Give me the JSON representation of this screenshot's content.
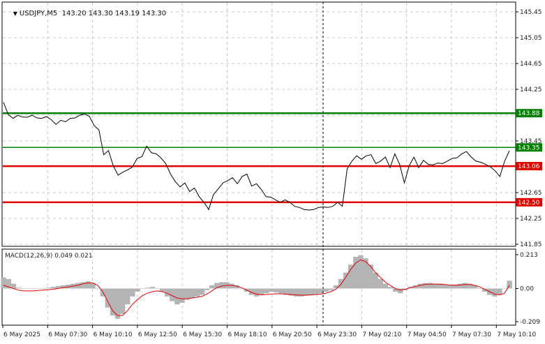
{
  "header": {
    "symbol_label": "USDJPY,M5",
    "ohlc_text": "143.20 143.30 143.19 143.30",
    "menu_icon": "triangle-down-icon"
  },
  "macd_label": "MACD(12,26,9) 0.049 0.021",
  "colors": {
    "price_line": "#000000",
    "support_line": "#e00000",
    "resistance_line": "#008000",
    "macd_hist": "#b4b4b4",
    "macd_signal": "#e00000",
    "grid": "#c8c8c8",
    "label_text": "#ffffff"
  },
  "chart_data": [
    {
      "type": "line",
      "title": "USDJPY,M5",
      "y_ticks": [
        "145.45",
        "145.05",
        "144.65",
        "144.25",
        "143.85",
        "143.45",
        "143.05",
        "142.65",
        "142.25",
        "141.85"
      ],
      "ylim": [
        141.85,
        145.45
      ],
      "x_tick_labels": [
        "6 May 2025",
        "6 May 07:30",
        "6 May 10:10",
        "6 May 12:50",
        "6 May 15:30",
        "6 May 18:10",
        "6 May 20:50",
        "6 May 23:30",
        "7 May 02:10",
        "7 May 04:50",
        "7 May 07:30",
        "7 May 10:10"
      ],
      "levels": [
        {
          "value": 143.88,
          "label": "143.88",
          "kind": "resistance"
        },
        {
          "value": 143.35,
          "label": "143.35",
          "kind": "resistance"
        },
        {
          "value": 143.06,
          "label": "143.06",
          "kind": "support"
        },
        {
          "value": 142.5,
          "label": "142.50",
          "kind": "support"
        }
      ],
      "series": [
        {
          "values": [
            144.05,
            143.87,
            143.8,
            143.86,
            143.82,
            143.83,
            143.85,
            143.82,
            143.8,
            143.84,
            143.78,
            143.72,
            143.77,
            143.76,
            143.8,
            143.82,
            143.85,
            143.88,
            143.83,
            143.7,
            143.62,
            143.25,
            143.3,
            143.08,
            142.92,
            142.98,
            143.0,
            143.06,
            143.18,
            143.22,
            143.37,
            143.28,
            143.25,
            143.2,
            143.1,
            142.95,
            142.82,
            142.75,
            142.8,
            142.68,
            142.72,
            142.6,
            142.5,
            142.4,
            142.62,
            142.72,
            142.8,
            142.85,
            142.88,
            142.8,
            142.9,
            142.95,
            142.75,
            142.8,
            142.7,
            142.6,
            142.58,
            142.55,
            142.5,
            142.55,
            142.5,
            142.45,
            142.42,
            142.4,
            142.38,
            142.4,
            142.42,
            142.44,
            142.42,
            142.45,
            142.5,
            142.45,
            143.02,
            143.15,
            143.22,
            143.18,
            143.22,
            143.25,
            143.1,
            143.15,
            143.2,
            143.05,
            143.25,
            143.1,
            142.8,
            143.08,
            143.2,
            143.05,
            143.15,
            143.1,
            143.08,
            143.12,
            143.1,
            143.15,
            143.18,
            143.2,
            143.25,
            143.3,
            143.2,
            143.15,
            143.12,
            143.1,
            143.05,
            143.0,
            142.9,
            143.15,
            143.3
          ]
        }
      ]
    },
    {
      "type": "bar",
      "title": "MACD(12,26,9) 0.049 0.021",
      "y_ticks": [
        "0.213",
        "0.00",
        "-0.209"
      ],
      "ylim": [
        -0.209,
        0.213
      ],
      "series": [
        {
          "name": "MACD",
          "values": [
            0.07,
            0.06,
            0.03,
            0.005,
            0.0,
            0.0,
            0.0,
            0.0,
            0.0,
            0.005,
            0.01,
            0.015,
            0.02,
            0.025,
            0.03,
            0.035,
            0.04,
            0.045,
            0.035,
            0.0,
            -0.05,
            -0.12,
            -0.17,
            -0.19,
            -0.16,
            -0.1,
            -0.05,
            -0.02,
            0.0,
            0.005,
            0.01,
            0.0,
            -0.02,
            -0.05,
            -0.08,
            -0.1,
            -0.09,
            -0.07,
            -0.06,
            -0.05,
            -0.04,
            -0.01,
            0.02,
            0.035,
            0.04,
            0.04,
            0.03,
            0.02,
            0.0,
            -0.02,
            -0.04,
            -0.05,
            -0.04,
            -0.03,
            -0.02,
            -0.025,
            -0.03,
            -0.04,
            -0.045,
            -0.05,
            -0.05,
            -0.045,
            -0.04,
            -0.035,
            -0.03,
            -0.02,
            -0.01,
            0.02,
            0.06,
            0.1,
            0.15,
            0.2,
            0.21,
            0.19,
            0.15,
            0.1,
            0.06,
            0.03,
            0.01,
            -0.02,
            -0.03,
            -0.01,
            0.01,
            0.02,
            0.03,
            0.035,
            0.035,
            0.03,
            0.03,
            0.025,
            0.02,
            0.025,
            0.03,
            0.035,
            0.03,
            0.02,
            0.0,
            -0.02,
            -0.04,
            -0.05,
            -0.04,
            0.0,
            0.049
          ]
        },
        {
          "name": "Signal",
          "values": [
            0.02,
            0.01,
            0.0,
            -0.01,
            -0.015,
            -0.015,
            -0.015,
            -0.012,
            -0.01,
            -0.008,
            -0.005,
            0.0,
            0.005,
            0.01,
            0.015,
            0.02,
            0.03,
            0.035,
            0.035,
            0.02,
            -0.02,
            -0.08,
            -0.14,
            -0.17,
            -0.17,
            -0.14,
            -0.1,
            -0.07,
            -0.045,
            -0.03,
            -0.02,
            -0.015,
            -0.02,
            -0.03,
            -0.045,
            -0.06,
            -0.065,
            -0.065,
            -0.06,
            -0.055,
            -0.05,
            -0.035,
            -0.015,
            0.005,
            0.015,
            0.02,
            0.02,
            0.015,
            0.005,
            -0.01,
            -0.025,
            -0.035,
            -0.04,
            -0.038,
            -0.035,
            -0.033,
            -0.033,
            -0.036,
            -0.038,
            -0.04,
            -0.042,
            -0.042,
            -0.04,
            -0.038,
            -0.035,
            -0.03,
            -0.02,
            -0.005,
            0.025,
            0.07,
            0.12,
            0.16,
            0.18,
            0.17,
            0.14,
            0.1,
            0.07,
            0.04,
            0.02,
            0.0,
            -0.01,
            -0.005,
            0.005,
            0.012,
            0.02,
            0.025,
            0.028,
            0.028,
            0.027,
            0.025,
            0.022,
            0.02,
            0.022,
            0.025,
            0.025,
            0.02,
            0.01,
            -0.005,
            -0.02,
            -0.035,
            -0.04,
            -0.03,
            0.021
          ]
        }
      ]
    }
  ]
}
